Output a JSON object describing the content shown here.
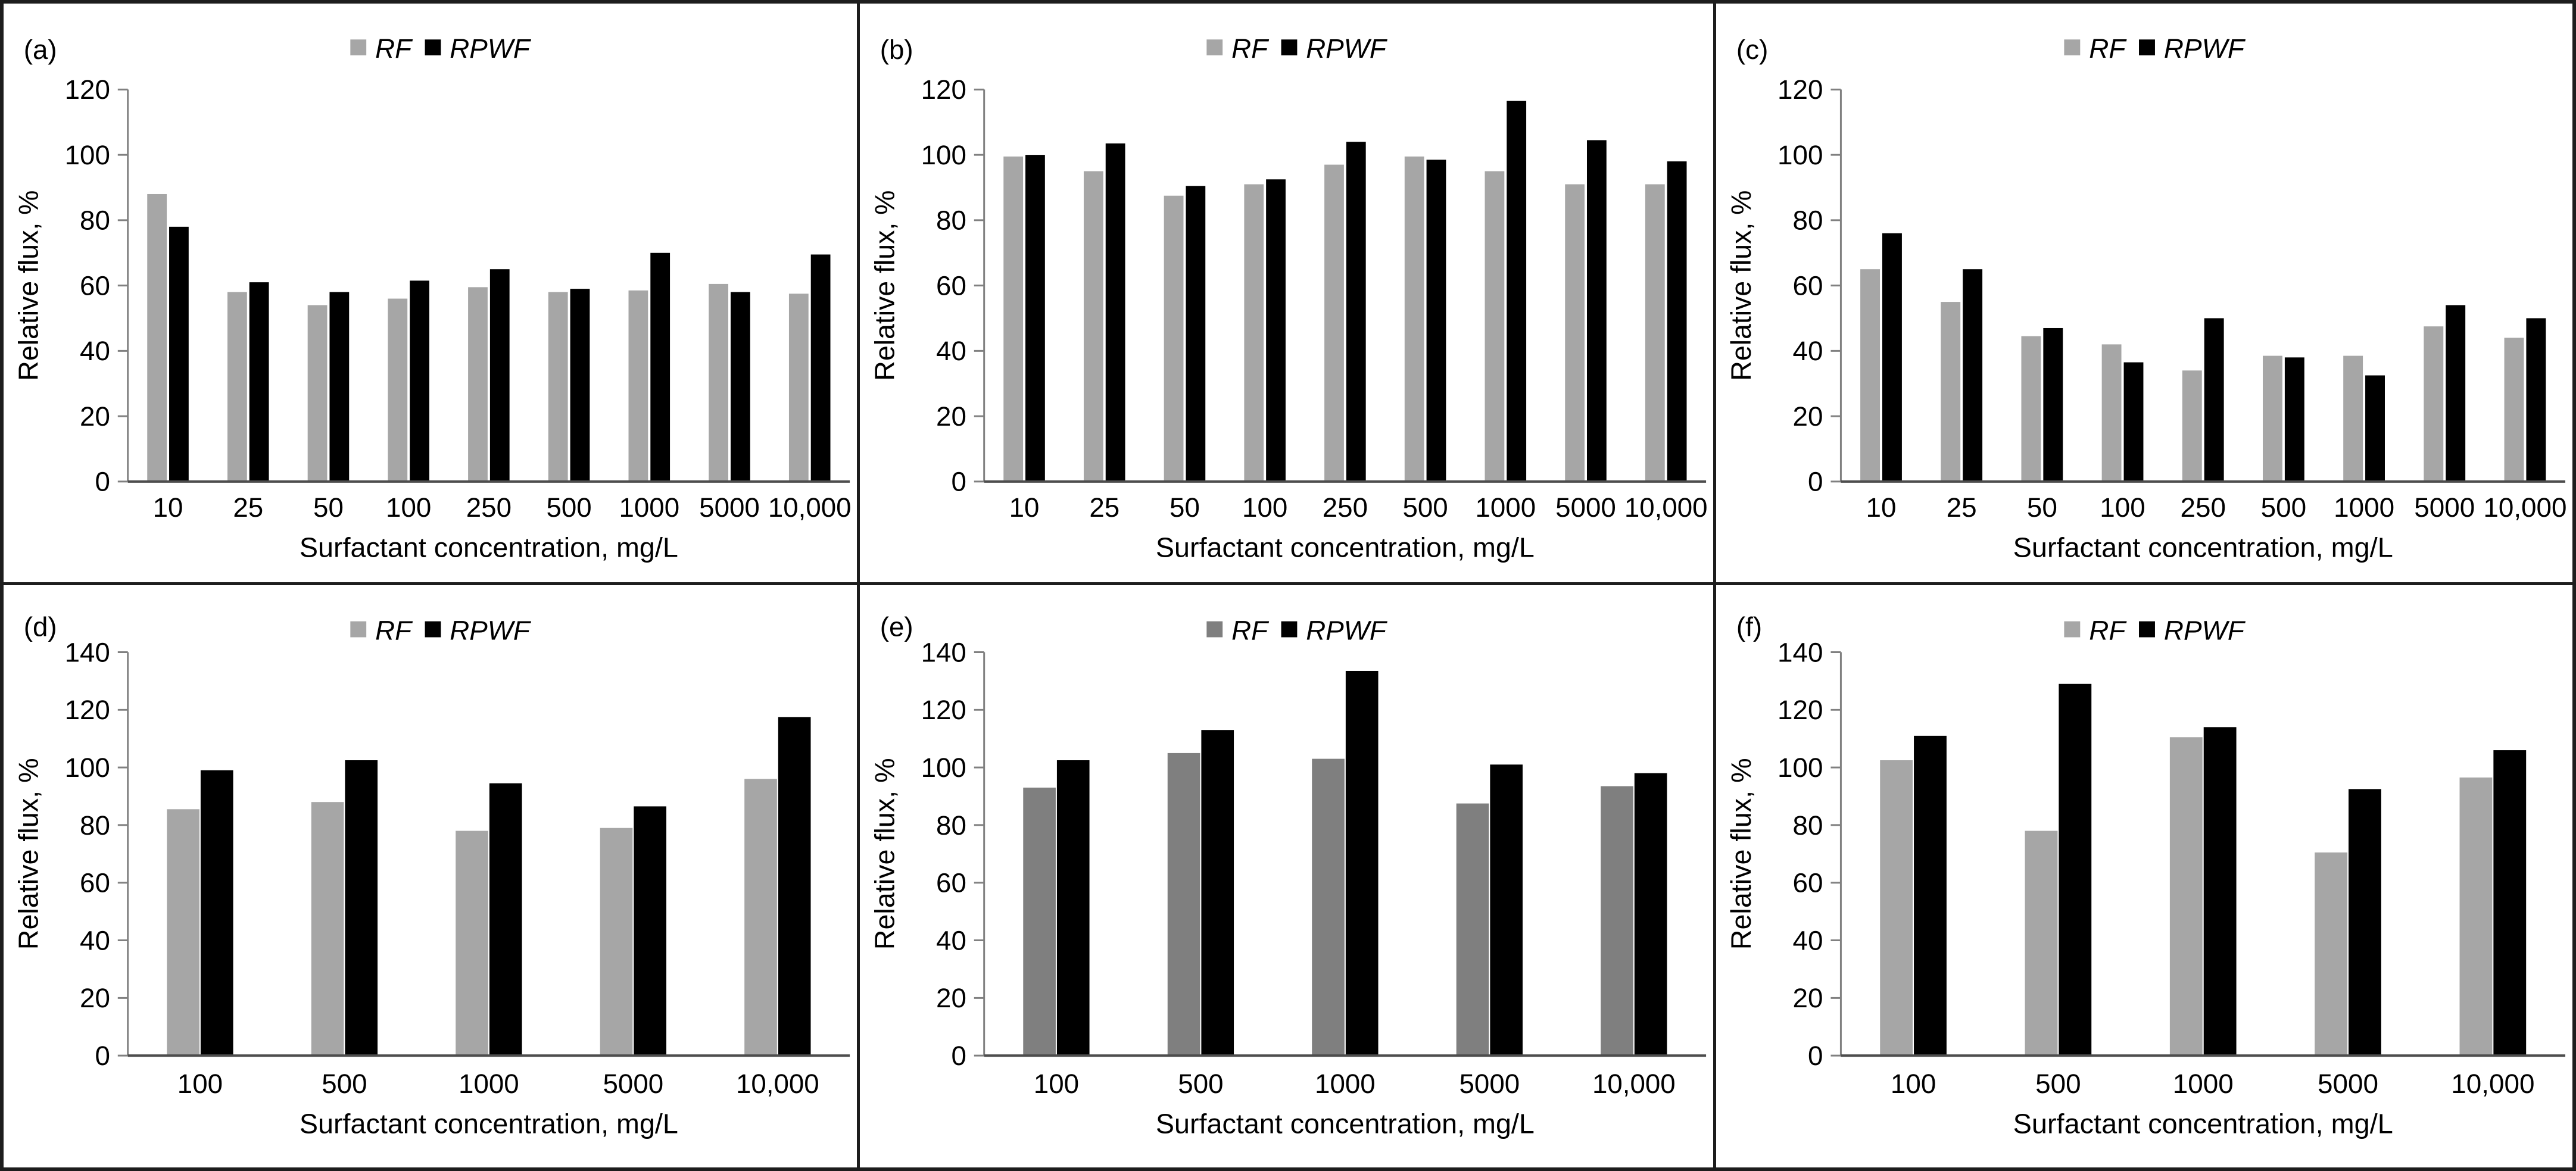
{
  "figure": {
    "background": "#ffffff",
    "border_color": "#1d1d1d",
    "axis_line_color": "#808080",
    "baseline_color": "#4d4d4d",
    "text_color": "#000000",
    "rf_color_light": "#a6a6a6",
    "rf_color_dark": "#7f7f7f",
    "rpwf_color": "#000000"
  },
  "chart_data": [
    {
      "panel_label": "(a)",
      "type": "bar",
      "row": "top",
      "xlabel": "Surfactant concentration, mg/L",
      "ylabel": "Relative flux, %",
      "ylim": [
        0,
        120
      ],
      "ytick_step": 20,
      "grid": false,
      "legend_position": "top",
      "categories": [
        "10",
        "25",
        "50",
        "100",
        "250",
        "500",
        "1000",
        "5000",
        "10,000"
      ],
      "series": [
        {
          "name": "RF",
          "color": "#a6a6a6",
          "values": [
            88,
            58,
            54,
            56,
            59.5,
            58,
            58.5,
            60.5,
            57.5
          ]
        },
        {
          "name": "RPWF",
          "color": "#000000",
          "values": [
            78,
            61,
            58,
            61.5,
            65,
            59,
            70,
            58,
            69.5
          ]
        }
      ]
    },
    {
      "panel_label": "(b)",
      "type": "bar",
      "row": "top",
      "xlabel": "Surfactant concentration, mg/L",
      "ylabel": "Relative flux, %",
      "ylim": [
        0,
        120
      ],
      "ytick_step": 20,
      "grid": false,
      "legend_position": "top",
      "categories": [
        "10",
        "25",
        "50",
        "100",
        "250",
        "500",
        "1000",
        "5000",
        "10,000"
      ],
      "series": [
        {
          "name": "RF",
          "color": "#a6a6a6",
          "values": [
            99.5,
            95,
            87.5,
            91,
            97,
            99.5,
            95,
            91,
            91
          ]
        },
        {
          "name": "RPWF",
          "color": "#000000",
          "values": [
            100,
            103.5,
            90.5,
            92.5,
            104,
            98.5,
            116.5,
            104.5,
            98
          ]
        }
      ]
    },
    {
      "panel_label": "(c)",
      "type": "bar",
      "row": "top",
      "xlabel": "Surfactant concentration, mg/L",
      "ylabel": "Relative flux, %",
      "ylim": [
        0,
        120
      ],
      "ytick_step": 20,
      "grid": false,
      "legend_position": "top",
      "categories": [
        "10",
        "25",
        "50",
        "100",
        "250",
        "500",
        "1000",
        "5000",
        "10,000"
      ],
      "series": [
        {
          "name": "RF",
          "color": "#a6a6a6",
          "values": [
            65,
            55,
            44.5,
            42,
            34,
            38.5,
            38.5,
            47.5,
            44
          ]
        },
        {
          "name": "RPWF",
          "color": "#000000",
          "values": [
            76,
            65,
            47,
            36.5,
            50,
            38,
            32.5,
            54,
            50
          ]
        }
      ]
    },
    {
      "panel_label": "(d)",
      "type": "bar",
      "row": "bottom",
      "xlabel": "Surfactant concentration, mg/L",
      "ylabel": "Relative flux, %",
      "ylim": [
        0,
        140
      ],
      "ytick_step": 20,
      "grid": false,
      "legend_position": "top",
      "categories": [
        "100",
        "500",
        "1000",
        "5000",
        "10,000"
      ],
      "series": [
        {
          "name": "RF",
          "color": "#a6a6a6",
          "values": [
            85.5,
            88,
            78,
            79,
            96
          ]
        },
        {
          "name": "RPWF",
          "color": "#000000",
          "values": [
            99,
            102.5,
            94.5,
            86.5,
            117.5
          ]
        }
      ]
    },
    {
      "panel_label": "(e)",
      "type": "bar",
      "row": "bottom",
      "xlabel": "Surfactant concentration, mg/L",
      "ylabel": "Relative flux, %",
      "ylim": [
        0,
        140
      ],
      "ytick_step": 20,
      "grid": false,
      "legend_position": "top",
      "categories": [
        "100",
        "500",
        "1000",
        "5000",
        "10,000"
      ],
      "series": [
        {
          "name": "RF",
          "color": "#7f7f7f",
          "values": [
            93,
            105,
            103,
            87.5,
            93.5
          ]
        },
        {
          "name": "RPWF",
          "color": "#000000",
          "values": [
            102.5,
            113,
            133.5,
            101,
            98
          ]
        }
      ]
    },
    {
      "panel_label": "(f)",
      "type": "bar",
      "row": "bottom",
      "xlabel": "Surfactant concentration, mg/L",
      "ylabel": "Relative flux, %",
      "ylim": [
        0,
        140
      ],
      "ytick_step": 20,
      "grid": false,
      "legend_position": "top",
      "categories": [
        "100",
        "500",
        "1000",
        "5000",
        "10,000"
      ],
      "series": [
        {
          "name": "RF",
          "color": "#a6a6a6",
          "values": [
            102.5,
            78,
            110.5,
            70.5,
            96.5
          ]
        },
        {
          "name": "RPWF",
          "color": "#000000",
          "values": [
            111,
            129,
            114,
            92.5,
            106
          ]
        }
      ]
    }
  ]
}
